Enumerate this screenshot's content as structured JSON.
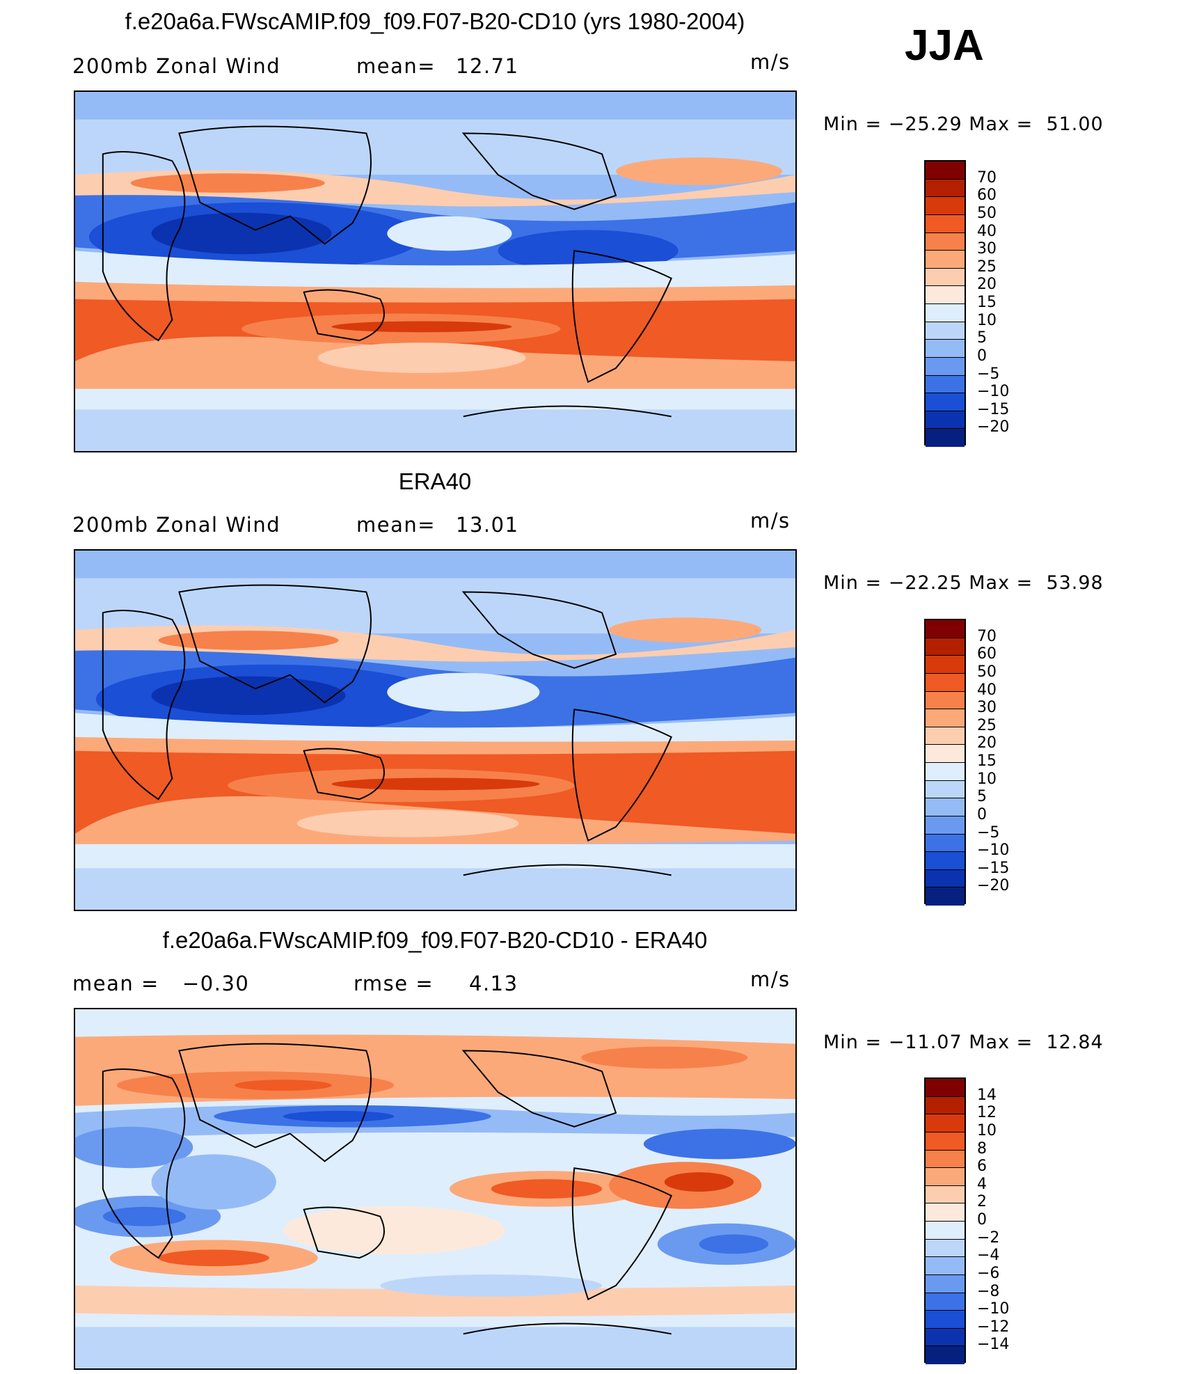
{
  "season": "JJA",
  "panels": [
    {
      "title": "f.e20a6a.FWscAMIP.f09_f09.F07-B20-CD10 (yrs 1980-2004)",
      "left_label": "200mb Zonal Wind",
      "stat1_label": "mean=",
      "stat1_value": "12.71",
      "stat2_label": "",
      "stat2_value": "",
      "units": "m/s",
      "min_label": "Min =",
      "min_value": "−25.29",
      "max_label": "Max =",
      "max_value": "51.00",
      "levels": [
        "70",
        "60",
        "50",
        "40",
        "30",
        "25",
        "20",
        "15",
        "10",
        "5",
        "0",
        "−5",
        "−10",
        "−15",
        "−20"
      ],
      "colors": [
        "#800000",
        "#b22000",
        "#d83a0c",
        "#f05a24",
        "#f7814a",
        "#fca97a",
        "#fdcdb0",
        "#fde9dc",
        "#dfeefc",
        "#bcd6fa",
        "#95bbf6",
        "#6a9af0",
        "#3c72e6",
        "#1a4fd6",
        "#0b33b0",
        "#05207e"
      ]
    },
    {
      "title": "ERA40",
      "left_label": "200mb Zonal Wind",
      "stat1_label": "mean=",
      "stat1_value": "13.01",
      "stat2_label": "",
      "stat2_value": "",
      "units": "m/s",
      "min_label": "Min =",
      "min_value": "−22.25",
      "max_label": "Max =",
      "max_value": "53.98",
      "levels": [
        "70",
        "60",
        "50",
        "40",
        "30",
        "25",
        "20",
        "15",
        "10",
        "5",
        "0",
        "−5",
        "−10",
        "−15",
        "−20"
      ],
      "colors": [
        "#800000",
        "#b22000",
        "#d83a0c",
        "#f05a24",
        "#f7814a",
        "#fca97a",
        "#fdcdb0",
        "#fde9dc",
        "#dfeefc",
        "#bcd6fa",
        "#95bbf6",
        "#6a9af0",
        "#3c72e6",
        "#1a4fd6",
        "#0b33b0",
        "#05207e"
      ]
    },
    {
      "title": "f.e20a6a.FWscAMIP.f09_f09.F07-B20-CD10 - ERA40",
      "left_label": "mean =",
      "stat1_label": "−0.30",
      "stat1_value": "",
      "stat2_label": "rmse =",
      "stat2_value": "4.13",
      "units": "m/s",
      "min_label": "Min =",
      "min_value": "−11.07",
      "max_label": "Max =",
      "max_value": "12.84",
      "levels": [
        "14",
        "12",
        "10",
        "8",
        "6",
        "4",
        "2",
        "0",
        "−2",
        "−4",
        "−6",
        "−8",
        "−10",
        "−12",
        "−14"
      ],
      "colors": [
        "#800000",
        "#b22000",
        "#d83a0c",
        "#f05a24",
        "#f7814a",
        "#fca97a",
        "#fdcdb0",
        "#fde9dc",
        "#dfeefc",
        "#bcd6fa",
        "#95bbf6",
        "#6a9af0",
        "#3c72e6",
        "#1a4fd6",
        "#0b33b0",
        "#05207e"
      ]
    }
  ]
}
